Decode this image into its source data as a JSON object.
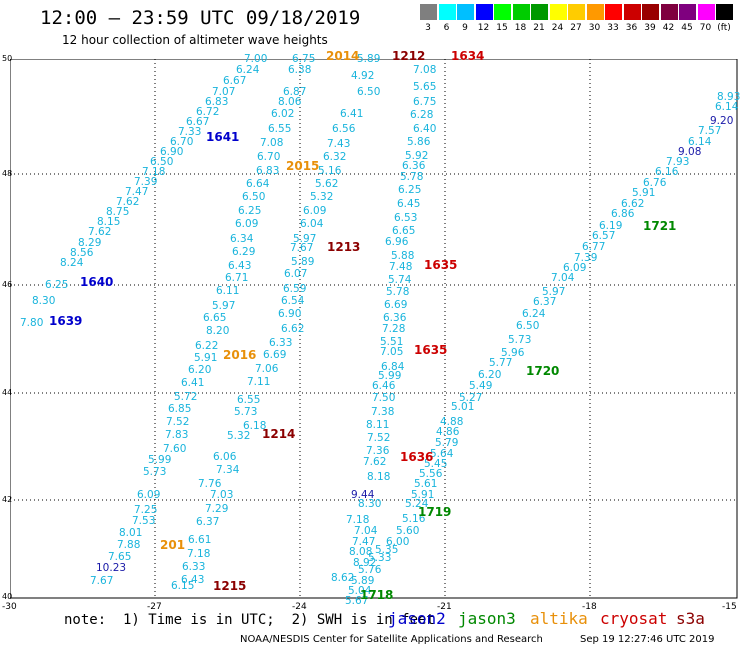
{
  "header": {
    "title": "12:00 – 23:59 UTC 09/18/2019",
    "subtitle": "12 hour collection of altimeter wave heights"
  },
  "color_scale": {
    "colors": [
      "#7f7f7f",
      "#00ffff",
      "#00bfff",
      "#0000ff",
      "#00ff00",
      "#00cc00",
      "#009900",
      "#ffff00",
      "#ffcc00",
      "#ff9900",
      "#ff0000",
      "#cc0000",
      "#990000",
      "#7f003f",
      "#7f007f",
      "#ff00ff",
      "#000000"
    ],
    "labels": [
      "3",
      "6",
      "9",
      "12",
      "15",
      "18",
      "21",
      "24",
      "27",
      "30",
      "33",
      "36",
      "39",
      "42",
      "45",
      "70",
      "(ft)"
    ]
  },
  "axes": {
    "y_ticks": [
      "50",
      "48",
      "46",
      "44",
      "42",
      "40"
    ],
    "x_ticks": [
      "-30",
      "-27",
      "-24",
      "-21",
      "-18",
      "-15"
    ]
  },
  "passes": [
    {
      "label": "2014",
      "satellite": "altika"
    },
    {
      "label": "1212",
      "satellite": "s3a"
    },
    {
      "label": "1634",
      "satellite": "cryosat"
    },
    {
      "label": "1641",
      "satellite": "jason2"
    },
    {
      "label": "2015",
      "satellite": "altika"
    },
    {
      "label": "1213",
      "satellite": "s3a"
    },
    {
      "label": "1635",
      "satellite": "cryosat"
    },
    {
      "label": "1721",
      "satellite": "jason3"
    },
    {
      "label": "1640",
      "satellite": "jason2"
    },
    {
      "label": "1639",
      "satellite": "jason2"
    },
    {
      "label": "1635",
      "satellite": "cryosat"
    },
    {
      "label": "2016",
      "satellite": "altika"
    },
    {
      "label": "1720",
      "satellite": "jason3"
    },
    {
      "label": "1214",
      "satellite": "s3a"
    },
    {
      "label": "1636",
      "satellite": "cryosat"
    },
    {
      "label": "1719",
      "satellite": "jason3"
    },
    {
      "label": "201",
      "satellite": "altika"
    },
    {
      "label": "1215",
      "satellite": "s3a"
    },
    {
      "label": "1718",
      "satellite": "jason3"
    }
  ],
  "wave_heights": [
    "7.00",
    "6.75",
    "5.89",
    "6.24",
    "6.38",
    "4.92",
    "6.67",
    "7.08",
    "7.07",
    "6.87",
    "6.50",
    "6.83",
    "8.06",
    "5.65",
    "6.72",
    "6.75",
    "6.67",
    "6.02",
    "6.41",
    "6.28",
    "7.33",
    "6.55",
    "6.56",
    "6.40",
    "6.70",
    "7.08",
    "7.43",
    "5.86",
    "6.90",
    "6.32",
    "5.92",
    "6.50",
    "6.70",
    "7.18",
    "6.83",
    "5.16",
    "6.36",
    "7.39",
    "6.64",
    "5.62",
    "5.78",
    "7.47",
    "6.50",
    "5.32",
    "6.25",
    "7.62",
    "6.25",
    "6.09",
    "6.45",
    "8.75",
    "6.09",
    "6.04",
    "6.53",
    "8.15",
    "6.34",
    "5.97",
    "6.65",
    "7.62",
    "7.67",
    "6.96",
    "8.29",
    "6.29",
    "5.89",
    "5.88",
    "8.56",
    "6.43",
    "7.48",
    "8.24",
    "6.71",
    "6.07",
    "5.74",
    "6.25",
    "6.11",
    "6.59",
    "5.78",
    "8.30",
    "5.97",
    "6.54",
    "6.69",
    "7.80",
    "6.65",
    "6.90",
    "6.36",
    "8.20",
    "6.62",
    "7.28",
    "6.22",
    "6.33",
    "5.51",
    "5.91",
    "6.69",
    "7.05",
    "6.20",
    "7.06",
    "6.84",
    "6.41",
    "7.11",
    "5.99",
    "6.46",
    "5.72",
    "6.55",
    "7.50",
    "6.85",
    "5.73",
    "7.38",
    "7.52",
    "6.18",
    "8.11",
    "7.83",
    "5.32",
    "7.52",
    "7.60",
    "6.06",
    "7.36",
    "5.99",
    "7.34",
    "7.62",
    "5.73",
    "7.76",
    "8.18",
    "6.09",
    "7.03",
    "9.44",
    "7.25",
    "7.29",
    "8.30",
    "7.53",
    "6.37",
    "7.18",
    "8.01",
    "6.61",
    "7.04",
    "7.88",
    "7.18",
    "7.47",
    "7.65",
    "6.33",
    "8.08",
    "10.23",
    "6.43",
    "8.92",
    "7.67",
    "6.15",
    "8.62",
    "8.93",
    "6.14",
    "9.20",
    "7.57",
    "6.14",
    "9.08",
    "7.93",
    "6.16",
    "6.76",
    "5.91",
    "6.62",
    "6.86",
    "6.19",
    "6.57",
    "6.77",
    "7.39",
    "6.09",
    "7.04",
    "5.97",
    "6.37",
    "6.24",
    "6.50",
    "5.73",
    "5.96",
    "5.77",
    "6.20",
    "5.49",
    "5.27",
    "5.01",
    "4.88",
    "4.86",
    "5.79",
    "5.64",
    "5.45",
    "5.56",
    "5.61",
    "5.91",
    "5.24",
    "5.16",
    "5.60",
    "6.00",
    "5.35",
    "5.33",
    "5.76",
    "5.89",
    "5.04",
    "5.67",
    "5.24",
    "5.09",
    "5.40",
    "5.76",
    "5.59",
    "5.64",
    "5.65",
    "5.30",
    "5.74",
    "6.03"
  ],
  "footer": {
    "note": "note:  1) Time is in UTC;  2) SWH is in feet",
    "legend": [
      {
        "name": "jason2",
        "satellite": "jason2"
      },
      {
        "name": "jason3",
        "satellite": "jason3"
      },
      {
        "name": "altika",
        "satellite": "altika"
      },
      {
        "name": "cryosat",
        "satellite": "cryosat"
      },
      {
        "name": "s3a",
        "satellite": "s3a"
      }
    ],
    "credit": "NOAA/NESDIS Center for Satellite Applications and Research",
    "timestamp": "Sep 19 12:27:46 UTC 2019"
  }
}
